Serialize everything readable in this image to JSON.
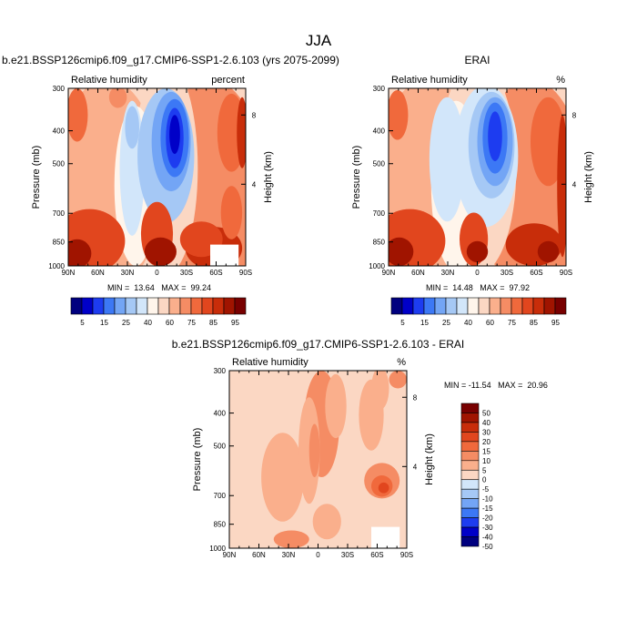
{
  "figure": {
    "title": "JJA"
  },
  "chart_data": [
    {
      "type": "heatmap",
      "title": "b.e21.BSSP126cmip6.f09_g17.CMIP6-SSP1-2.6.103 (yrs 2075-2099)",
      "left_label": "Relative humidity",
      "right_label": "percent",
      "ylabel": "Pressure (mb)",
      "ylabel_right": "Height (km)",
      "x_ticks": [
        "90N",
        "60N",
        "30N",
        "0",
        "30S",
        "60S",
        "90S"
      ],
      "y_ticks": [
        "300",
        "400",
        "500",
        "700",
        "850",
        "1000"
      ],
      "height_ticks": [
        "8",
        "4"
      ],
      "stats_text": "MIN =  13.64   MAX =  99.24",
      "min": 13.64,
      "max": 99.24,
      "ylim": [
        1000,
        300
      ],
      "colorbar": {
        "orientation": "horizontal",
        "labels": [
          "5",
          "15",
          "25",
          "40",
          "60",
          "75",
          "85",
          "95"
        ],
        "colors": [
          "#00007f",
          "#0000c8",
          "#1d3cf0",
          "#3c78f5",
          "#73a5f5",
          "#a5c8f5",
          "#d2e6fa",
          "#fff5eb",
          "#fbd7c3",
          "#faaf8c",
          "#f58c64",
          "#f0693c",
          "#e1461e",
          "#c82d0a",
          "#a01400",
          "#780000"
        ]
      }
    },
    {
      "type": "heatmap",
      "title": "ERAI",
      "left_label": "Relative humidity",
      "right_label": "%",
      "ylabel": "Pressure (mb)",
      "ylabel_right": "Height (km)",
      "x_ticks": [
        "90N",
        "60N",
        "30N",
        "0",
        "30S",
        "60S",
        "90S"
      ],
      "y_ticks": [
        "300",
        "400",
        "500",
        "700",
        "850",
        "1000"
      ],
      "height_ticks": [
        "8",
        "4"
      ],
      "stats_text": "MIN =  14.48   MAX =  97.92",
      "min": 14.48,
      "max": 97.92,
      "ylim": [
        1000,
        300
      ],
      "colorbar": {
        "orientation": "horizontal",
        "labels": [
          "5",
          "15",
          "25",
          "40",
          "60",
          "75",
          "85",
          "95"
        ],
        "colors": [
          "#00007f",
          "#0000c8",
          "#1d3cf0",
          "#3c78f5",
          "#73a5f5",
          "#a5c8f5",
          "#d2e6fa",
          "#fff5eb",
          "#fbd7c3",
          "#faaf8c",
          "#f58c64",
          "#f0693c",
          "#e1461e",
          "#c82d0a",
          "#a01400",
          "#780000"
        ]
      }
    },
    {
      "type": "heatmap",
      "title": "b.e21.BSSP126cmip6.f09_g17.CMIP6-SSP1-2.6.103 - ERAI",
      "left_label": "Relative humidity",
      "right_label": "%",
      "ylabel": "Pressure (mb)",
      "ylabel_right": "Height (km)",
      "x_ticks": [
        "90N",
        "60N",
        "30N",
        "0",
        "30S",
        "60S",
        "90S"
      ],
      "y_ticks": [
        "300",
        "400",
        "500",
        "700",
        "850",
        "1000"
      ],
      "height_ticks": [
        "8",
        "4"
      ],
      "stats_text": "MIN = -11.54   MAX =  20.96",
      "min": -11.54,
      "max": 20.96,
      "ylim": [
        1000,
        300
      ],
      "colorbar": {
        "orientation": "vertical",
        "labels": [
          "50",
          "40",
          "30",
          "20",
          "15",
          "10",
          "5",
          "0",
          "-5",
          "-10",
          "-15",
          "-20",
          "-30",
          "-40",
          "-50"
        ],
        "colors": [
          "#780000",
          "#a01400",
          "#c82d0a",
          "#e1461e",
          "#f0693c",
          "#f58c64",
          "#faaf8c",
          "#fbd7c3",
          "#d2e6fa",
          "#a5c8f5",
          "#73a5f5",
          "#3c78f5",
          "#1d3cf0",
          "#0000c8",
          "#00007f"
        ]
      }
    }
  ]
}
